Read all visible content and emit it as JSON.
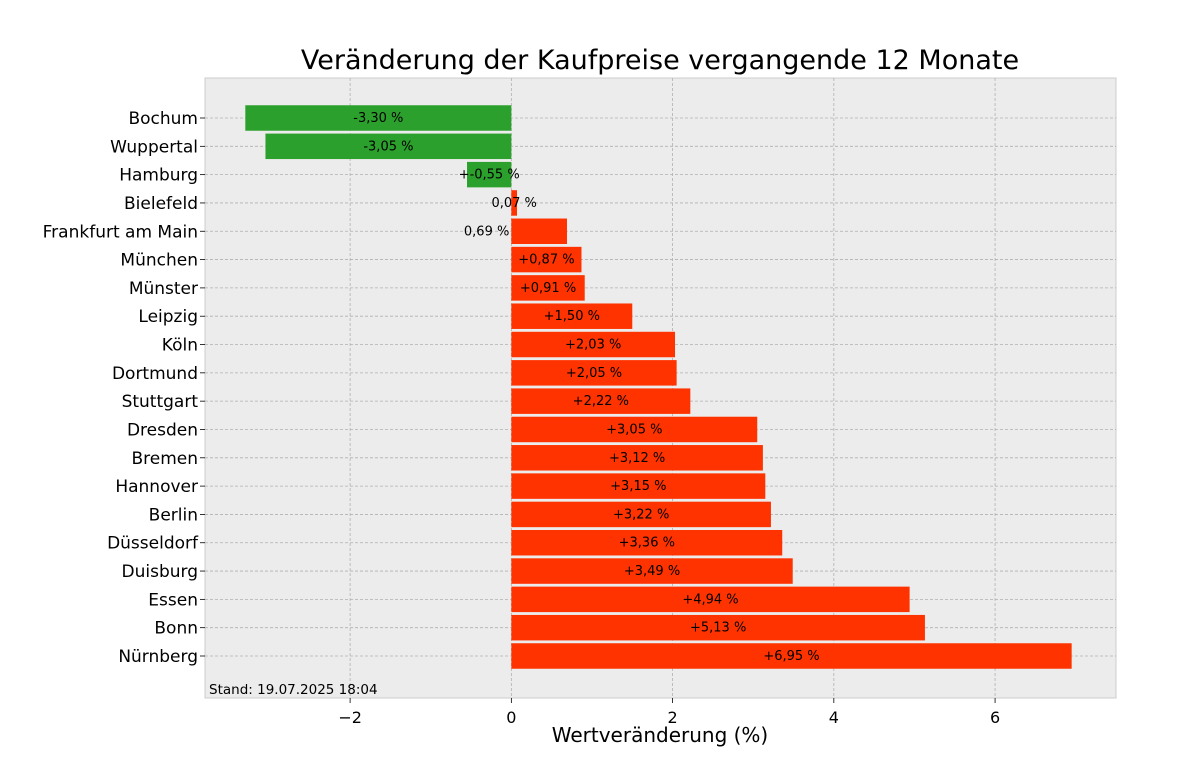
{
  "chart_data": {
    "type": "bar",
    "orientation": "horizontal",
    "title": "Veränderung der Kaufpreise vergangende 12 Monate",
    "xlabel": "Wertveränderung (%)",
    "ylabel": "",
    "xlim": [
      -3.8,
      7.5
    ],
    "xticks": [
      {
        "value": -2,
        "label": "−2"
      },
      {
        "value": 0,
        "label": "0"
      },
      {
        "value": 2,
        "label": "2"
      },
      {
        "value": 4,
        "label": "4"
      },
      {
        "value": 6,
        "label": "6"
      }
    ],
    "grid": true,
    "colors": {
      "negative": "#2ca02c",
      "positive": "#ff3300",
      "background": "#ececec",
      "grid": "#b0b0b0"
    },
    "categories": [
      "Bochum",
      "Wuppertal",
      "Hamburg",
      "Bielefeld",
      "Frankfurt am Main",
      "München",
      "Münster",
      "Leipzig",
      "Köln",
      "Dortmund",
      "Stuttgart",
      "Dresden",
      "Bremen",
      "Hannover",
      "Berlin",
      "Düsseldorf",
      "Duisburg",
      "Essen",
      "Bonn",
      "Nürnberg"
    ],
    "values": [
      -3.3,
      -3.05,
      -0.55,
      0.07,
      0.69,
      0.87,
      0.91,
      1.5,
      2.03,
      2.05,
      2.22,
      3.05,
      3.12,
      3.15,
      3.22,
      3.36,
      3.49,
      4.94,
      5.13,
      6.95
    ],
    "data_labels": [
      "-3,30 %",
      "-3,05 %",
      "+-0,55 %",
      "0,07 %",
      "0,69 %",
      "+0,87 %",
      "+0,91 %",
      "+1,50 %",
      "+2,03 %",
      "+2,05 %",
      "+2,22 %",
      "+3,05 %",
      "+3,12 %",
      "+3,15 %",
      "+3,22 %",
      "+3,36 %",
      "+3,49 %",
      "+4,94 %",
      "+5,13 %",
      "+6,95 %"
    ],
    "label_anchor": [
      "center",
      "center",
      "center",
      "center",
      "end",
      "center",
      "center",
      "center",
      "center",
      "center",
      "center",
      "center",
      "center",
      "center",
      "center",
      "center",
      "center",
      "center",
      "center",
      "center"
    ],
    "annotation": "Stand: 19.07.2025 18:04"
  }
}
